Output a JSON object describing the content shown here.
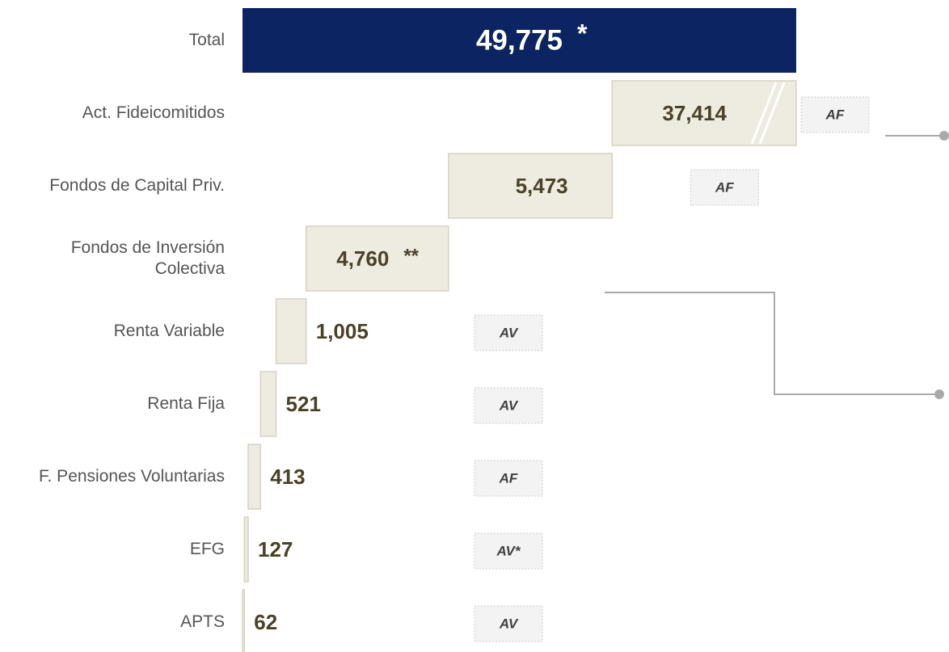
{
  "chart_data": {
    "type": "waterfall",
    "categories": [
      "Total",
      "Act. Fideicomitidos",
      "Fondos de Capital Priv.",
      "Fondos de Inversión Colectiva",
      "Renta Variable",
      "Renta Fija",
      "F. Pensiones Voluntarias",
      "EFG",
      "APTS"
    ],
    "values": [
      49775,
      37414,
      5473,
      4760,
      1005,
      521,
      413,
      127,
      62
    ],
    "value_labels": [
      "49,775",
      "37,414",
      "5,473",
      "4,760",
      "1,005",
      "521",
      "413",
      "127",
      "62"
    ],
    "notes": [
      "*",
      null,
      null,
      "**",
      null,
      null,
      null,
      null,
      null
    ],
    "tags": [
      null,
      "AF",
      "AF",
      null,
      "AV",
      "AV",
      "AF",
      "AV*",
      "AV"
    ],
    "total_color": "#0c2461",
    "color": "#eeebe1"
  }
}
